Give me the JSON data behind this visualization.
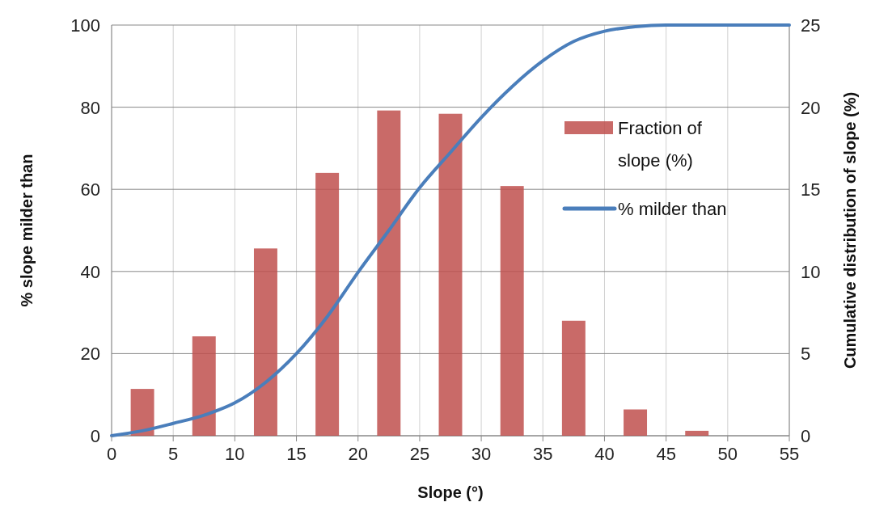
{
  "chart_data": {
    "type": "bar",
    "xlabel": "Slope (°)",
    "ylabel": "% slope milder than",
    "y2label": "Cumulative distribution of slope (%)",
    "xlim": [
      0,
      55
    ],
    "xticks": [
      0,
      5,
      10,
      15,
      20,
      25,
      30,
      35,
      40,
      45,
      50,
      55
    ],
    "ylim": [
      0,
      100
    ],
    "yticks": [
      0,
      20,
      40,
      60,
      80,
      100
    ],
    "y2lim": [
      0,
      25
    ],
    "y2ticks": [
      0,
      5,
      10,
      15,
      20,
      25
    ],
    "grid": true,
    "legend": "right",
    "series": [
      {
        "name": "Fraction of slope (%)",
        "axis": "y2",
        "color": "#c0504d",
        "x": [
          2.5,
          7.5,
          12.5,
          17.5,
          22.5,
          27.5,
          32.5,
          37.5,
          42.5,
          47.5
        ],
        "values": [
          2.85,
          6.05,
          11.4,
          16.0,
          19.8,
          19.6,
          15.2,
          7.0,
          1.6,
          0.3
        ]
      },
      {
        "name": "% milder than",
        "type": "line",
        "color": "#4a7ebb",
        "x": [
          0,
          2.5,
          5,
          7.5,
          10,
          12.5,
          15,
          17.5,
          20,
          22.5,
          25,
          27.5,
          30,
          32.5,
          35,
          37.5,
          40,
          42.5,
          45,
          50,
          55
        ],
        "values": [
          0,
          1.2,
          3,
          5,
          8,
          13,
          20,
          29,
          39.8,
          50,
          60.4,
          69,
          77.5,
          85,
          91.3,
          96,
          98.5,
          99.6,
          100,
          100,
          100
        ]
      }
    ]
  }
}
